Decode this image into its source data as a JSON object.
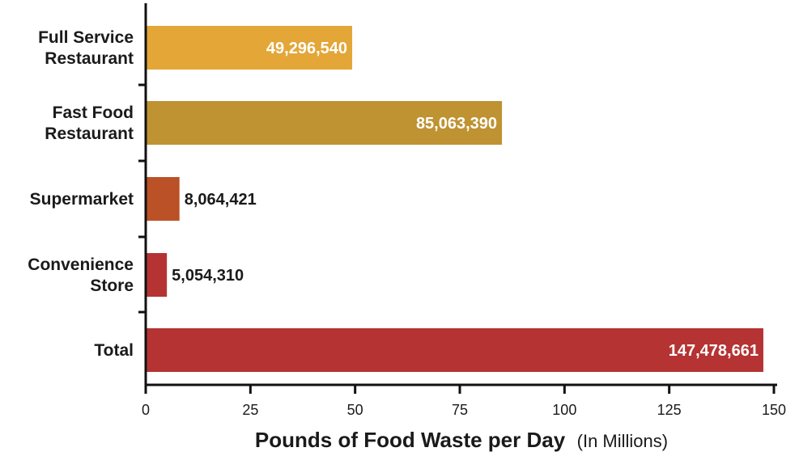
{
  "chart_data": {
    "type": "bar",
    "orientation": "horizontal",
    "title": "",
    "xlabel": "Pounds of Food Waste per Day",
    "xlabel_unit": "(In Millions)",
    "ylabel": "",
    "xlim": [
      0,
      150
    ],
    "x_ticks": [
      0,
      25,
      50,
      75,
      100,
      125,
      150
    ],
    "grid": false,
    "categories": [
      [
        "Full Service",
        "Restaurant"
      ],
      [
        "Fast Food",
        "Restaurant"
      ],
      [
        "Supermarket"
      ],
      [
        "Convenience",
        "Store"
      ],
      [
        "Total"
      ]
    ],
    "values": [
      49.29654,
      85.06339,
      8.064421,
      5.05431,
      147.478661
    ],
    "data_labels": [
      "49,296,540",
      "85,063,390",
      "8,064,421",
      "5,054,310",
      "147,478,661"
    ],
    "colors": [
      "#e3a637",
      "#bf9232",
      "#bb5126",
      "#b53333",
      "#b53333"
    ]
  }
}
